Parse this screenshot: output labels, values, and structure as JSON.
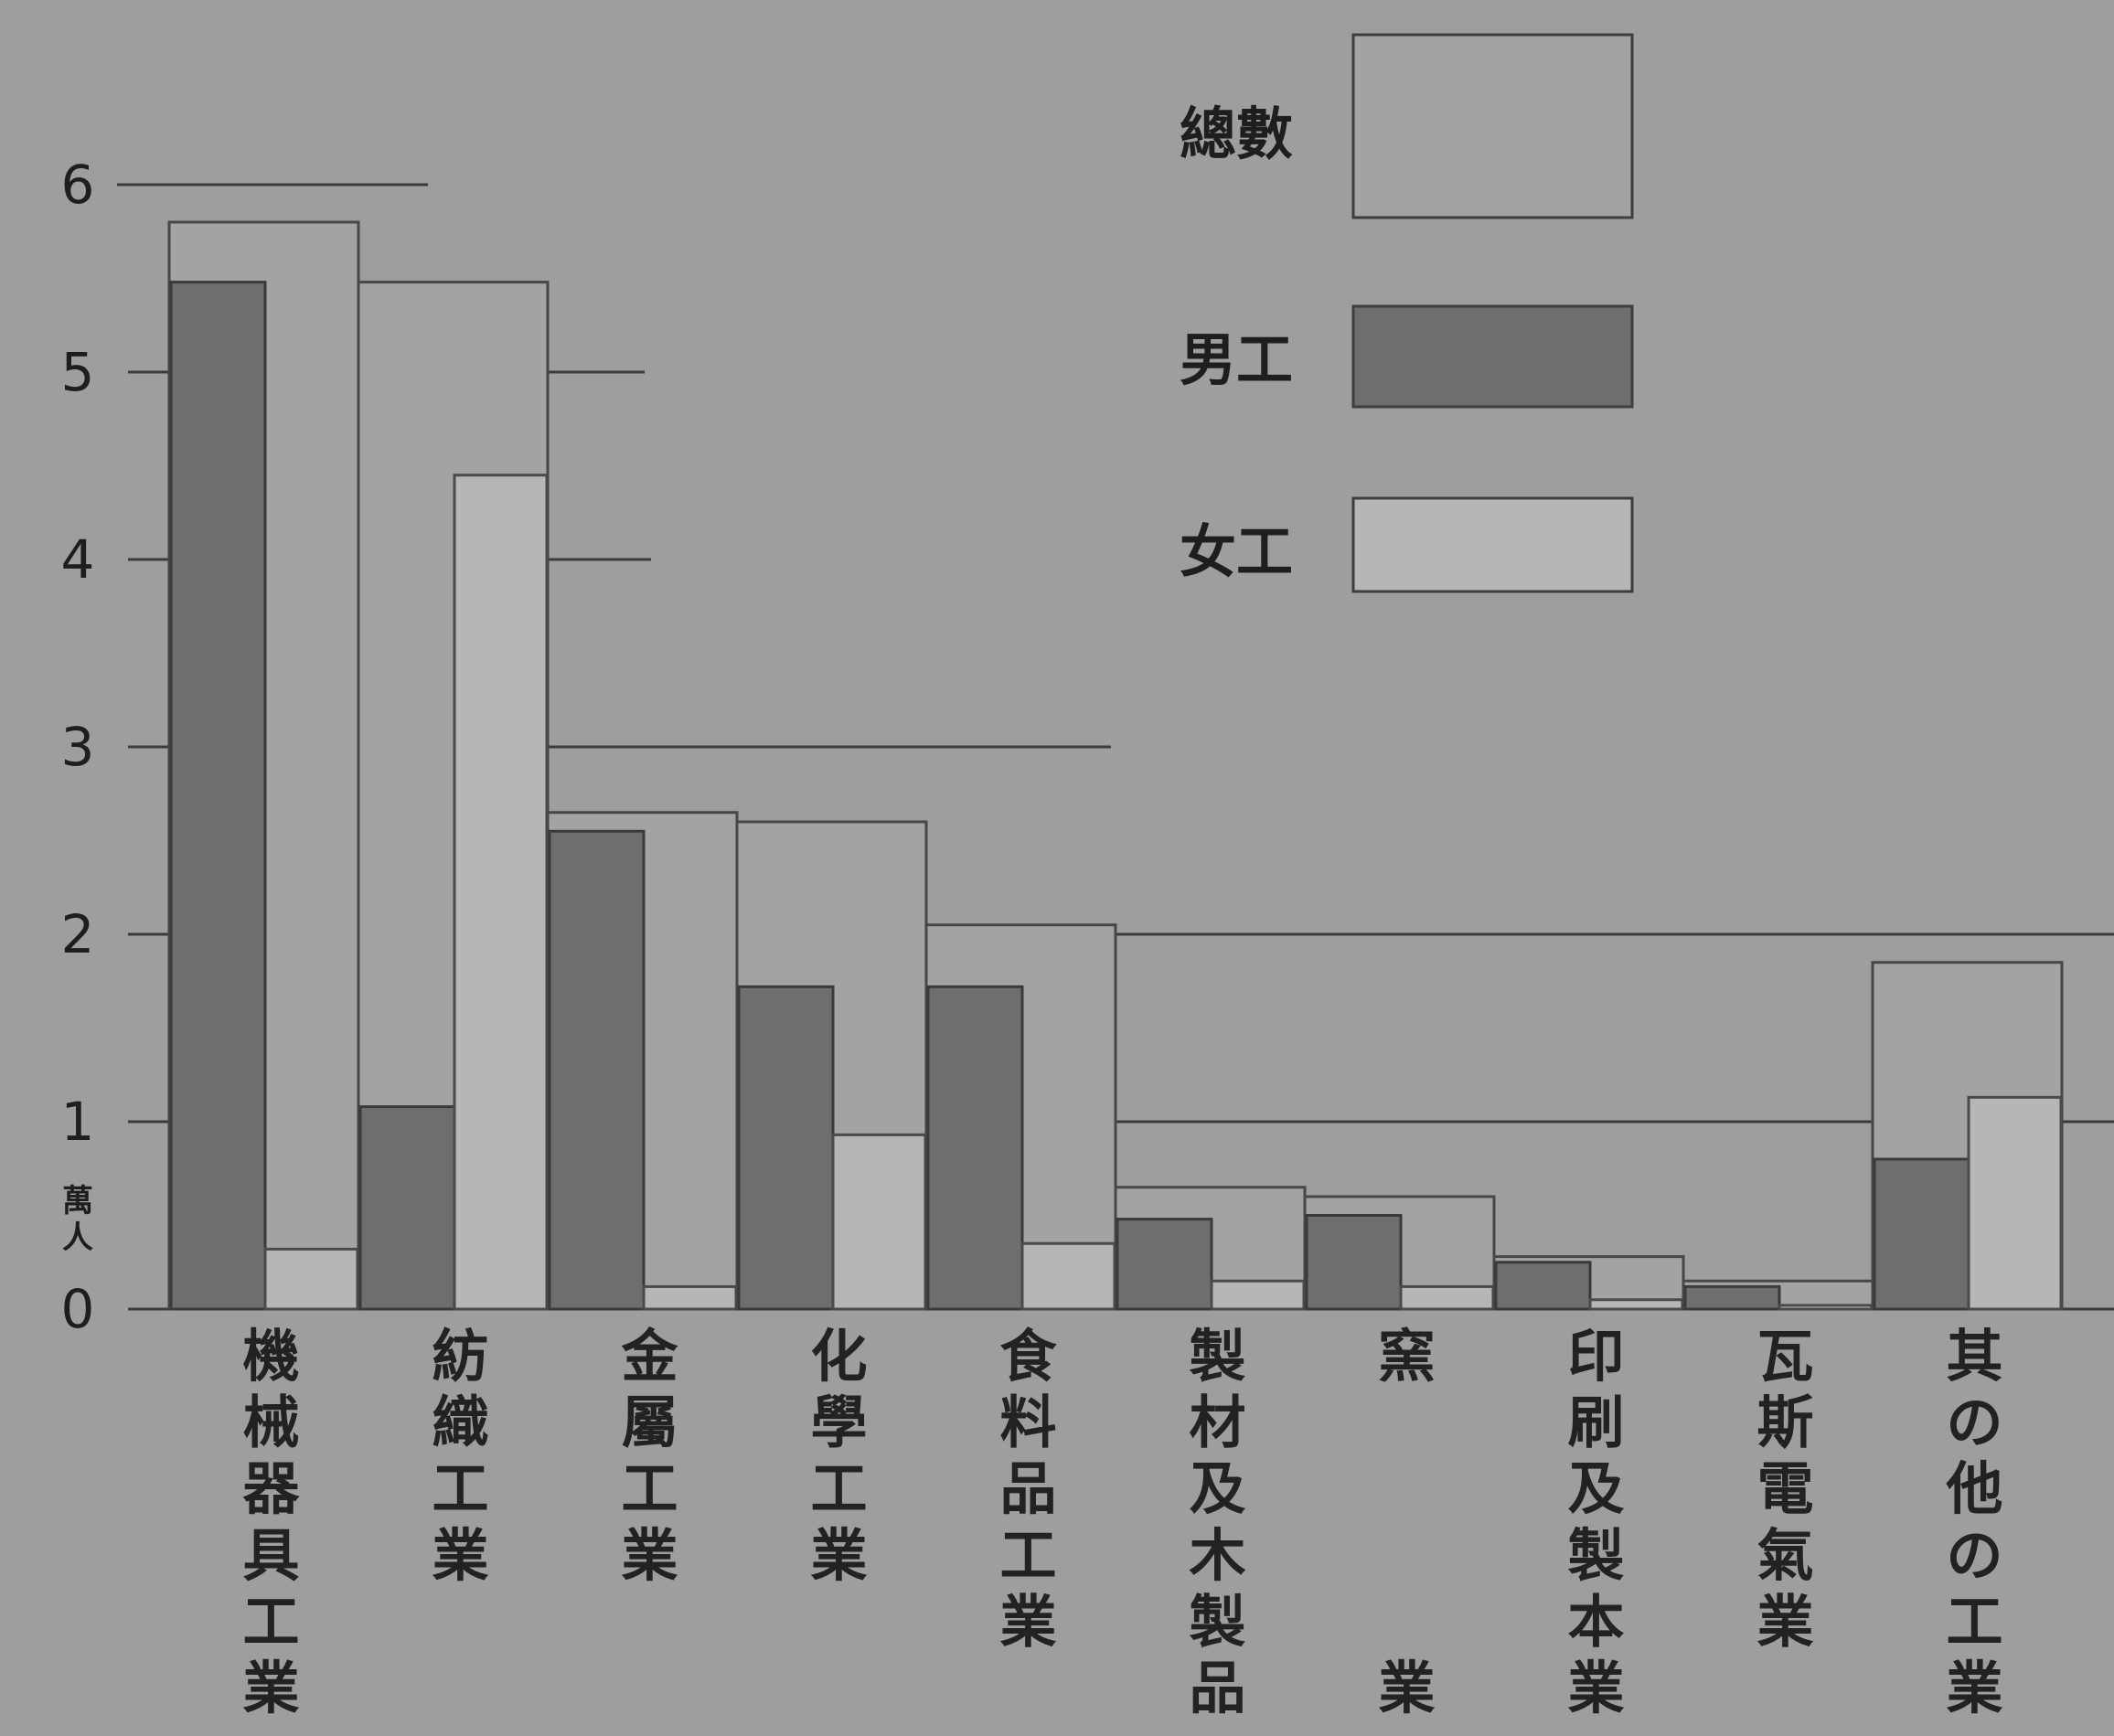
{
  "chart_data": {
    "type": "bar",
    "title": "",
    "xlabel": "",
    "ylabel": "",
    "y_unit": "萬人",
    "ylim": [
      0,
      6
    ],
    "yticks": [
      "0",
      "1",
      "2",
      "3",
      "4",
      "5",
      "6"
    ],
    "grid": true,
    "legend_position": "top-right",
    "categories": [
      "機械器具工業",
      "紡織工業",
      "金屬工業",
      "化學工業",
      "食料品工業",
      "製材及木製品",
      "窯業",
      "印刷及製本業",
      "瓦斯電氣業",
      "其の他の工業"
    ],
    "series": [
      {
        "name": "總數",
        "color": "#a3a3a3",
        "values": [
          5.8,
          5.48,
          2.65,
          2.6,
          2.05,
          0.65,
          0.6,
          0.28,
          0.15,
          1.85
        ]
      },
      {
        "name": "男工",
        "color": "#6e6e6e",
        "values": [
          5.48,
          1.08,
          2.55,
          1.72,
          1.72,
          0.48,
          0.5,
          0.25,
          0.12,
          0.8
        ]
      },
      {
        "name": "女工",
        "color": "#b6b6b6",
        "values": [
          0.32,
          4.45,
          0.12,
          0.93,
          0.35,
          0.15,
          0.12,
          0.05,
          0.02,
          1.13
        ]
      }
    ]
  }
}
